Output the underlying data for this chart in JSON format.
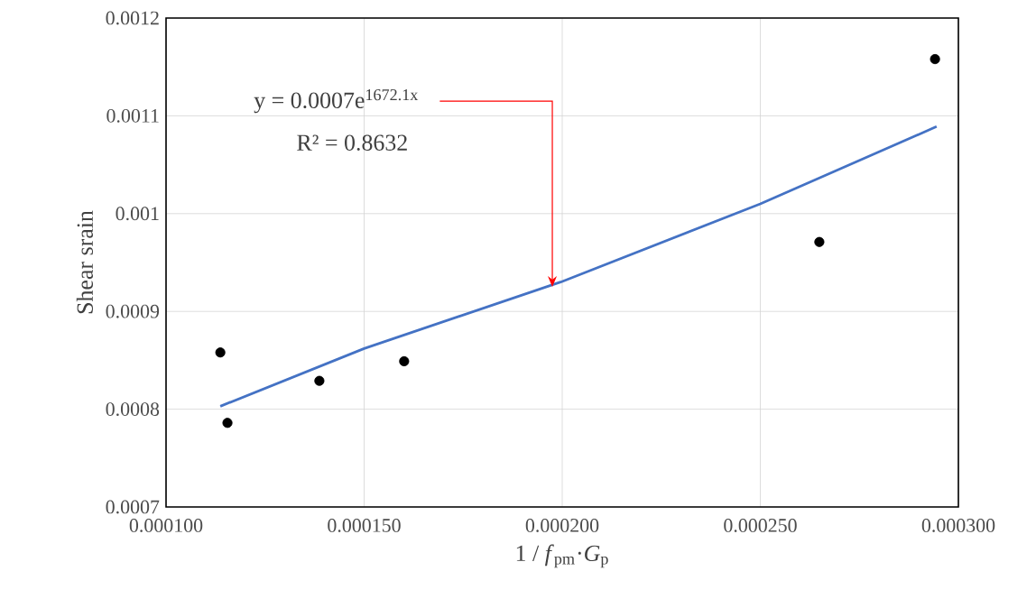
{
  "chart_data": {
    "type": "scatter",
    "xlabel": "1 / *f*$_{pm}$·*G*$_{p}$",
    "ylabel": "Shear srain",
    "xlim": [
      0.0001,
      0.0003
    ],
    "ylim": [
      0.0007,
      0.0012
    ],
    "xticks": [
      {
        "value": 0.0001,
        "label": "0.000100"
      },
      {
        "value": 0.00015,
        "label": "0.000150"
      },
      {
        "value": 0.0002,
        "label": "0.000200"
      },
      {
        "value": 0.00025,
        "label": "0.000250"
      },
      {
        "value": 0.0003,
        "label": "0.000300"
      }
    ],
    "yticks": [
      0.0007,
      0.0008,
      0.0009,
      0.001,
      0.0011,
      0.0012
    ],
    "grid": true,
    "marker": "circle",
    "series": [
      {
        "color": "#000000",
        "x": [
          0.0001137,
          0.0001155,
          0.0001387,
          0.0001601,
          0.0002649,
          0.0002941
        ],
        "values": [
          0.000858,
          0.000786,
          0.000829,
          0.000849,
          0.000971,
          0.001158
        ]
      },
      {
        "type": "line",
        "color": "#4472c4",
        "marker": "none",
        "x": [
          0.0001137,
          0.00015,
          0.0001996,
          0.00025,
          0.0002945
        ],
        "values": [
          0.000803,
          0.000862,
          0.00093,
          0.00101,
          0.001089
        ]
      }
    ],
    "annotations": [
      {
        "text": "y = 0.0007e$^{1672.1x}$",
        "x": 0.0001975,
        "y": 0.000925
      },
      "R² = 0.8632"
    ]
  }
}
